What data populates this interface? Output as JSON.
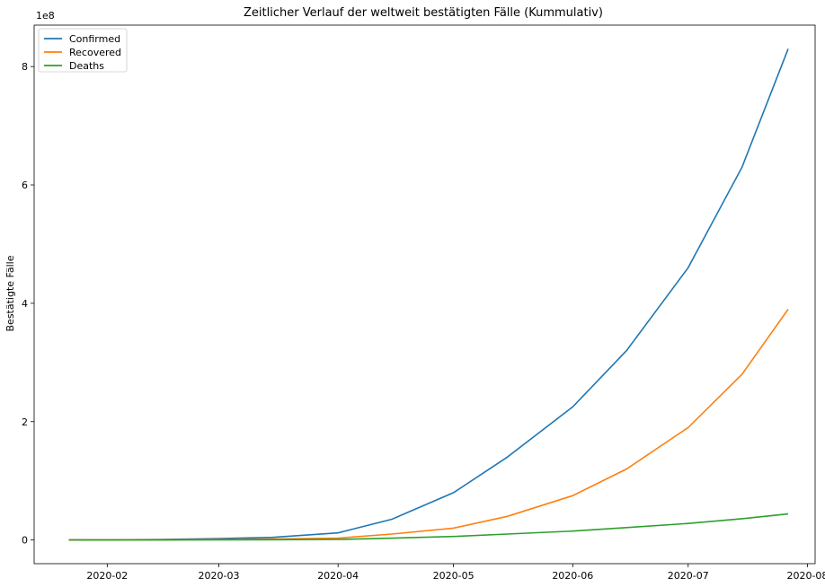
{
  "chart_data": {
    "type": "line",
    "title": "Zeitlicher Verlauf der weltweit bestätigten Fälle (Kummulativ)",
    "xlabel": "",
    "ylabel": "Bestätigte Fälle",
    "y_offset_label": "1e8",
    "y_scale_factor": 100000000,
    "xlim": [
      "2020-01-13",
      "2020-08-03"
    ],
    "ylim": [
      -40000000,
      870000000
    ],
    "x_ticks": [
      {
        "date": "2020-02-01",
        "label": "2020-02"
      },
      {
        "date": "2020-03-01",
        "label": "2020-03"
      },
      {
        "date": "2020-04-01",
        "label": "2020-04"
      },
      {
        "date": "2020-05-01",
        "label": "2020-05"
      },
      {
        "date": "2020-06-01",
        "label": "2020-06"
      },
      {
        "date": "2020-07-01",
        "label": "2020-07"
      },
      {
        "date": "2020-08-01",
        "label": "2020-08"
      }
    ],
    "y_ticks": [
      {
        "value": 0,
        "label": "0"
      },
      {
        "value": 200000000,
        "label": "2"
      },
      {
        "value": 400000000,
        "label": "4"
      },
      {
        "value": 600000000,
        "label": "6"
      },
      {
        "value": 800000000,
        "label": "8"
      }
    ],
    "grid": false,
    "legend_position": "top-left",
    "x": [
      "2020-01-22",
      "2020-02-01",
      "2020-02-15",
      "2020-03-01",
      "2020-03-15",
      "2020-04-01",
      "2020-04-15",
      "2020-05-01",
      "2020-05-15",
      "2020-06-01",
      "2020-06-15",
      "2020-07-01",
      "2020-07-15",
      "2020-07-27"
    ],
    "series": [
      {
        "name": "Confirmed",
        "color": "#1f77b4",
        "values": [
          0,
          200000,
          1000000,
          2500000,
          4500000,
          12000000,
          35000000,
          80000000,
          140000000,
          225000000,
          320000000,
          460000000,
          630000000,
          830000000
        ]
      },
      {
        "name": "Recovered",
        "color": "#ff7f0e",
        "values": [
          0,
          50000,
          300000,
          800000,
          1500000,
          3000000,
          10000000,
          20000000,
          40000000,
          75000000,
          120000000,
          190000000,
          280000000,
          390000000
        ]
      },
      {
        "name": "Deaths",
        "color": "#2ca02c",
        "values": [
          0,
          20000,
          100000,
          250000,
          500000,
          1000000,
          3000000,
          6000000,
          10000000,
          15000000,
          21000000,
          28000000,
          36000000,
          44000000
        ]
      }
    ]
  }
}
